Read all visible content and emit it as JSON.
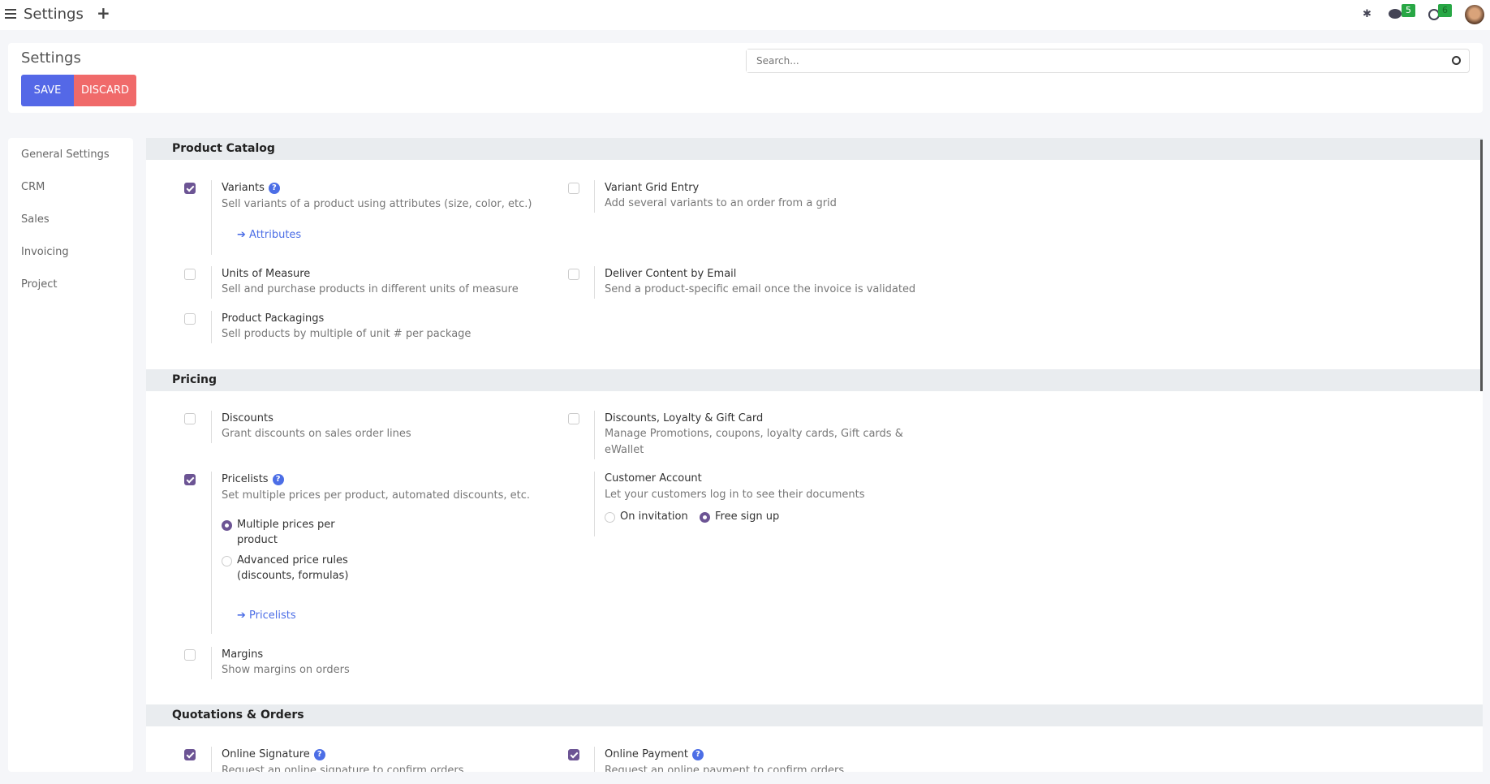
{
  "topbar": {
    "title": "Settings",
    "badges": {
      "messages": "5",
      "activities": "6"
    }
  },
  "control": {
    "title": "Settings",
    "save": "SAVE",
    "discard": "DISCARD",
    "search_placeholder": "Search..."
  },
  "sidebar": {
    "items": [
      "General Settings",
      "CRM",
      "Sales",
      "Invoicing",
      "Project"
    ]
  },
  "sections": {
    "catalog": "Product Catalog",
    "pricing": "Pricing",
    "quotations": "Quotations & Orders"
  },
  "settings": {
    "variants": {
      "title": "Variants",
      "desc": "Sell variants of a product using attributes (size, color, etc.)",
      "link": "Attributes",
      "checked": true
    },
    "grid": {
      "title": "Variant Grid Entry",
      "desc": "Add several variants to an order from a grid",
      "checked": false
    },
    "uom": {
      "title": "Units of Measure",
      "desc": "Sell and purchase products in different units of measure",
      "checked": false
    },
    "deliver": {
      "title": "Deliver Content by Email",
      "desc": "Send a product-specific email once the invoice is validated",
      "checked": false
    },
    "packaging": {
      "title": "Product Packagings",
      "desc": "Sell products by multiple of unit # per package",
      "checked": false
    },
    "discounts": {
      "title": "Discounts",
      "desc": "Grant discounts on sales order lines",
      "checked": false
    },
    "loyalty": {
      "title": "Discounts, Loyalty & Gift Card",
      "desc1": "Manage Promotions, coupons, loyalty cards, Gift cards &",
      "desc2": "eWallet",
      "checked": false
    },
    "pricelists": {
      "title": "Pricelists",
      "desc": "Set multiple prices per product, automated discounts, etc.",
      "opt1a": "Multiple prices per",
      "opt1b": "product",
      "opt2a": "Advanced price rules",
      "opt2b": "(discounts, formulas)",
      "selected": "Multiple prices per product",
      "link": "Pricelists",
      "checked": true
    },
    "customer": {
      "title": "Customer Account",
      "desc": "Let your customers log in to see their documents",
      "opt1": "On invitation",
      "opt2": "Free sign up",
      "selected": "Free sign up"
    },
    "margins": {
      "title": "Margins",
      "desc": "Show margins on orders",
      "checked": false
    },
    "signature": {
      "title": "Online Signature",
      "desc": "Request an online signature to confirm orders",
      "checked": true
    },
    "payment": {
      "title": "Online Payment",
      "desc": "Request an online payment to confirm orders",
      "checked": true
    }
  },
  "colors": {
    "save": "#5468e7",
    "discard": "#f06a6a",
    "check": "#6c5494",
    "link": "#4c6ee6"
  }
}
